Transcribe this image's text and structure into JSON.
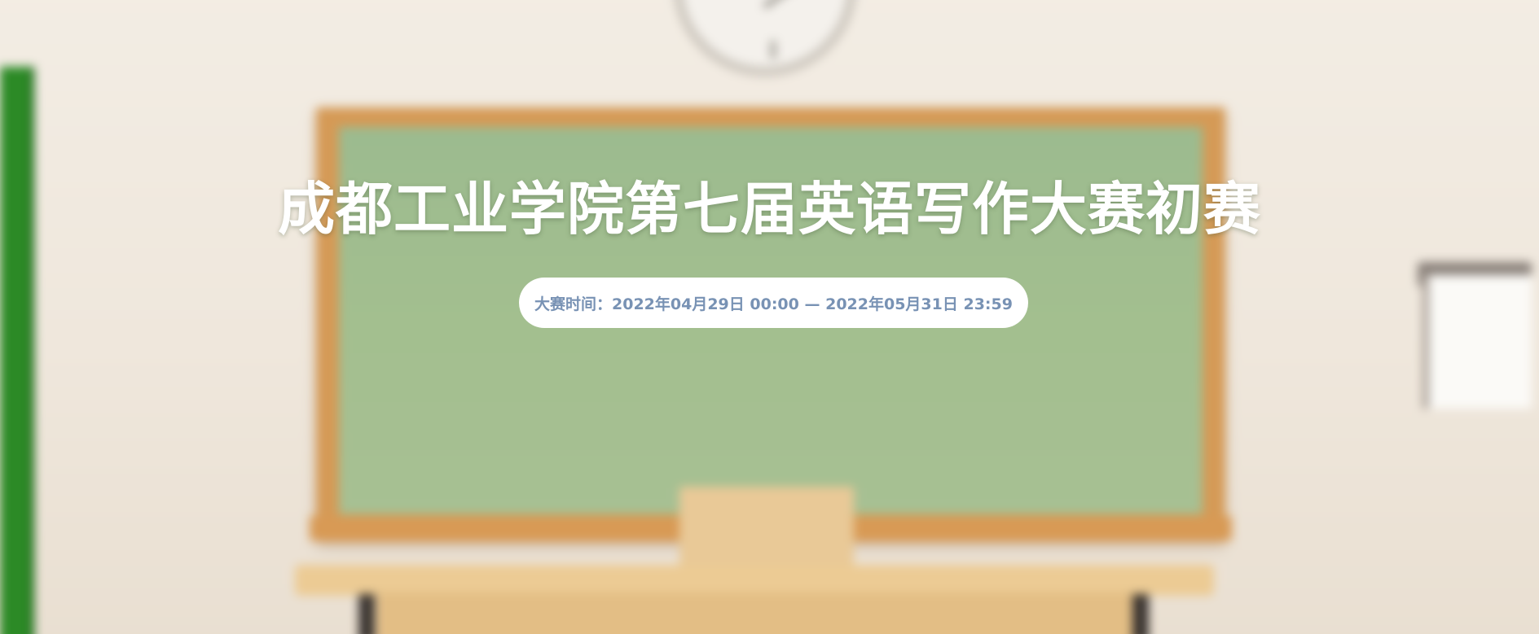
{
  "hero": {
    "title": "成都工业学院第七届英语写作大赛初赛",
    "date_range": "大赛时间：2022年04月29日 00:00 — 2022年05月31日 23:59"
  },
  "background": {
    "scene": "blurred classroom with green chalkboard",
    "colors": {
      "wall": "#efe7dc",
      "chalkboard": "#a3bf8f",
      "frame": "#d59a56",
      "accent_text": "#7892b4"
    }
  }
}
